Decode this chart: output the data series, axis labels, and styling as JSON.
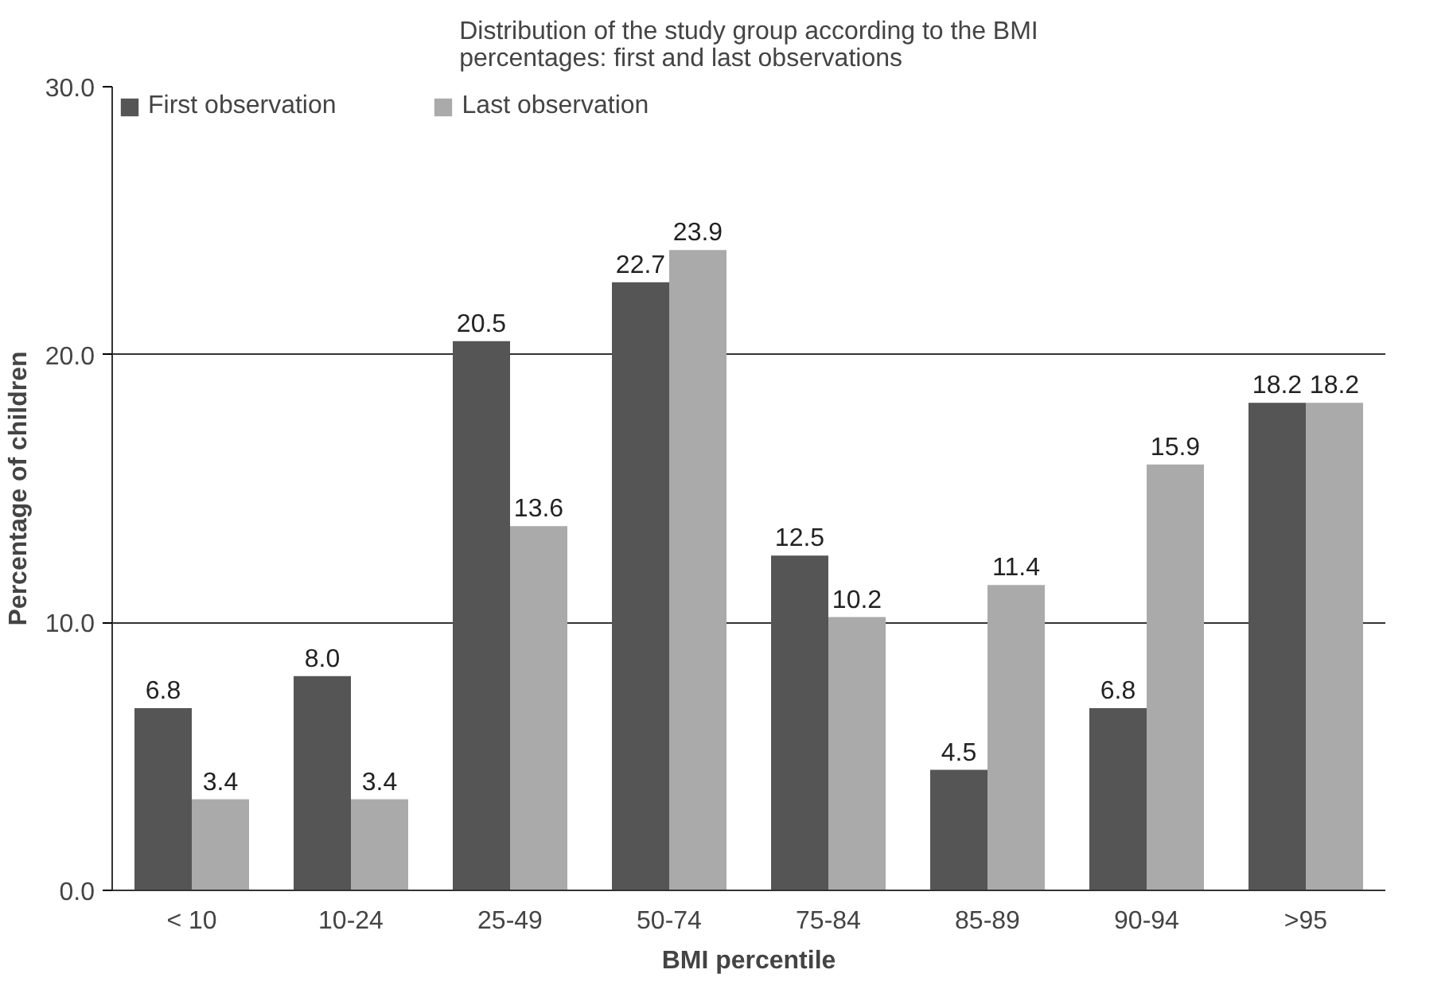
{
  "chart_data": {
    "type": "bar",
    "title": "Distribution of the study group according to the BMI\npercentages: first and last observations",
    "xlabel": "BMI percentile",
    "ylabel": "Percentage of children",
    "categories": [
      "< 10",
      "10-24",
      "25-49",
      "50-74",
      "75-84",
      "85-89",
      "90-94",
      ">95"
    ],
    "series": [
      {
        "name": "First observation",
        "color": "#555555",
        "values": [
          6.8,
          8.0,
          20.5,
          22.7,
          12.5,
          4.5,
          6.8,
          18.2
        ],
        "value_labels": [
          "6.8",
          "8.0",
          "20.5",
          "22.7",
          "12.5",
          "4.5",
          "6.8",
          "18.2"
        ]
      },
      {
        "name": "Last observation",
        "color": "#aaaaaa",
        "values": [
          3.4,
          3.4,
          13.6,
          23.9,
          10.2,
          11.4,
          15.9,
          18.2
        ],
        "value_labels": [
          "3.4",
          "3.4",
          "13.6",
          "23.9",
          "10.2",
          "11.4",
          "15.9",
          "18.2"
        ]
      }
    ],
    "ylim": [
      0,
      30
    ],
    "yticks": [
      {
        "value": 0,
        "label": "0.0"
      },
      {
        "value": 10,
        "label": "10.0"
      },
      {
        "value": 20,
        "label": "20.0"
      },
      {
        "value": 30,
        "label": "30.0"
      }
    ],
    "grid": "y",
    "legend": "top left"
  }
}
